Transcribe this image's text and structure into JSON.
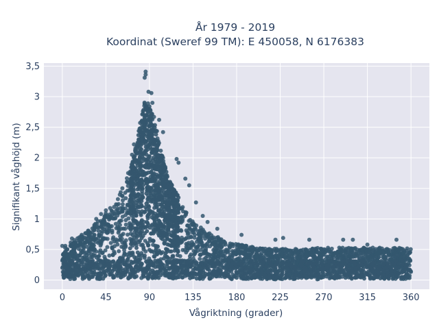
{
  "chart_data": {
    "type": "scatter",
    "title_lines": [
      "År 1979 - 2019",
      "Koordinat (Sweref 99 TM): E 450058, N 6176383"
    ],
    "xlabel": "Vågriktning (grader)",
    "ylabel": "Signifikant våghöjd (m)",
    "xlim": [
      -19,
      379
    ],
    "ylim": [
      -0.15,
      3.55
    ],
    "x_ticks": [
      0,
      45,
      90,
      135,
      180,
      225,
      270,
      315,
      360
    ],
    "y_ticks": [
      0,
      0.5,
      1,
      1.5,
      2,
      2.5,
      3,
      3.5
    ],
    "y_tick_labels": [
      "0",
      "0,5",
      "1",
      "1,5",
      "2",
      "2,5",
      "3",
      "3,5"
    ],
    "grid": true,
    "marker_color": "#34576e",
    "plot_background": "#e5e5ef",
    "envelope": {
      "description_x": [
        0,
        10,
        20,
        30,
        40,
        50,
        60,
        70,
        75,
        80,
        85,
        90,
        95,
        100,
        105,
        110,
        120,
        130,
        140,
        150,
        160,
        170,
        180,
        200,
        225,
        250,
        270,
        300,
        330,
        360
      ],
      "upper_y": [
        0.55,
        0.62,
        0.72,
        0.86,
        1.02,
        1.18,
        1.42,
        1.78,
        2.15,
        2.55,
        2.95,
        2.9,
        2.65,
        2.25,
        1.95,
        1.65,
        1.35,
        1.05,
        0.88,
        0.78,
        0.7,
        0.62,
        0.58,
        0.52,
        0.5,
        0.5,
        0.52,
        0.52,
        0.52,
        0.52
      ]
    },
    "highlighted_points": [
      {
        "x": 86,
        "y": 3.41
      },
      {
        "x": 86,
        "y": 3.36
      },
      {
        "x": 85,
        "y": 3.31
      },
      {
        "x": 89,
        "y": 3.08
      },
      {
        "x": 92,
        "y": 3.06
      },
      {
        "x": 93,
        "y": 2.9
      },
      {
        "x": 100,
        "y": 2.62
      },
      {
        "x": 104,
        "y": 2.42
      },
      {
        "x": 120,
        "y": 1.92
      },
      {
        "x": 118,
        "y": 1.98
      },
      {
        "x": 127,
        "y": 1.66
      },
      {
        "x": 131,
        "y": 1.55
      },
      {
        "x": 138,
        "y": 1.27
      },
      {
        "x": 145,
        "y": 1.05
      },
      {
        "x": 150,
        "y": 0.95
      },
      {
        "x": 160,
        "y": 0.84
      },
      {
        "x": 185,
        "y": 0.74
      },
      {
        "x": 220,
        "y": 0.66
      },
      {
        "x": 228,
        "y": 0.69
      },
      {
        "x": 255,
        "y": 0.66
      },
      {
        "x": 290,
        "y": 0.66
      },
      {
        "x": 300,
        "y": 0.66
      },
      {
        "x": 315,
        "y": 0.58
      },
      {
        "x": 345,
        "y": 0.66
      },
      {
        "x": 40,
        "y": 1.08
      },
      {
        "x": 35,
        "y": 1.0
      },
      {
        "x": 45,
        "y": 1.14
      },
      {
        "x": 62,
        "y": 1.5
      },
      {
        "x": 68,
        "y": 1.75
      },
      {
        "x": 72,
        "y": 2.05
      },
      {
        "x": 74,
        "y": 2.22
      },
      {
        "x": 10,
        "y": 0.68
      },
      {
        "x": 20,
        "y": 0.74
      },
      {
        "x": 0,
        "y": 0.56
      }
    ]
  }
}
